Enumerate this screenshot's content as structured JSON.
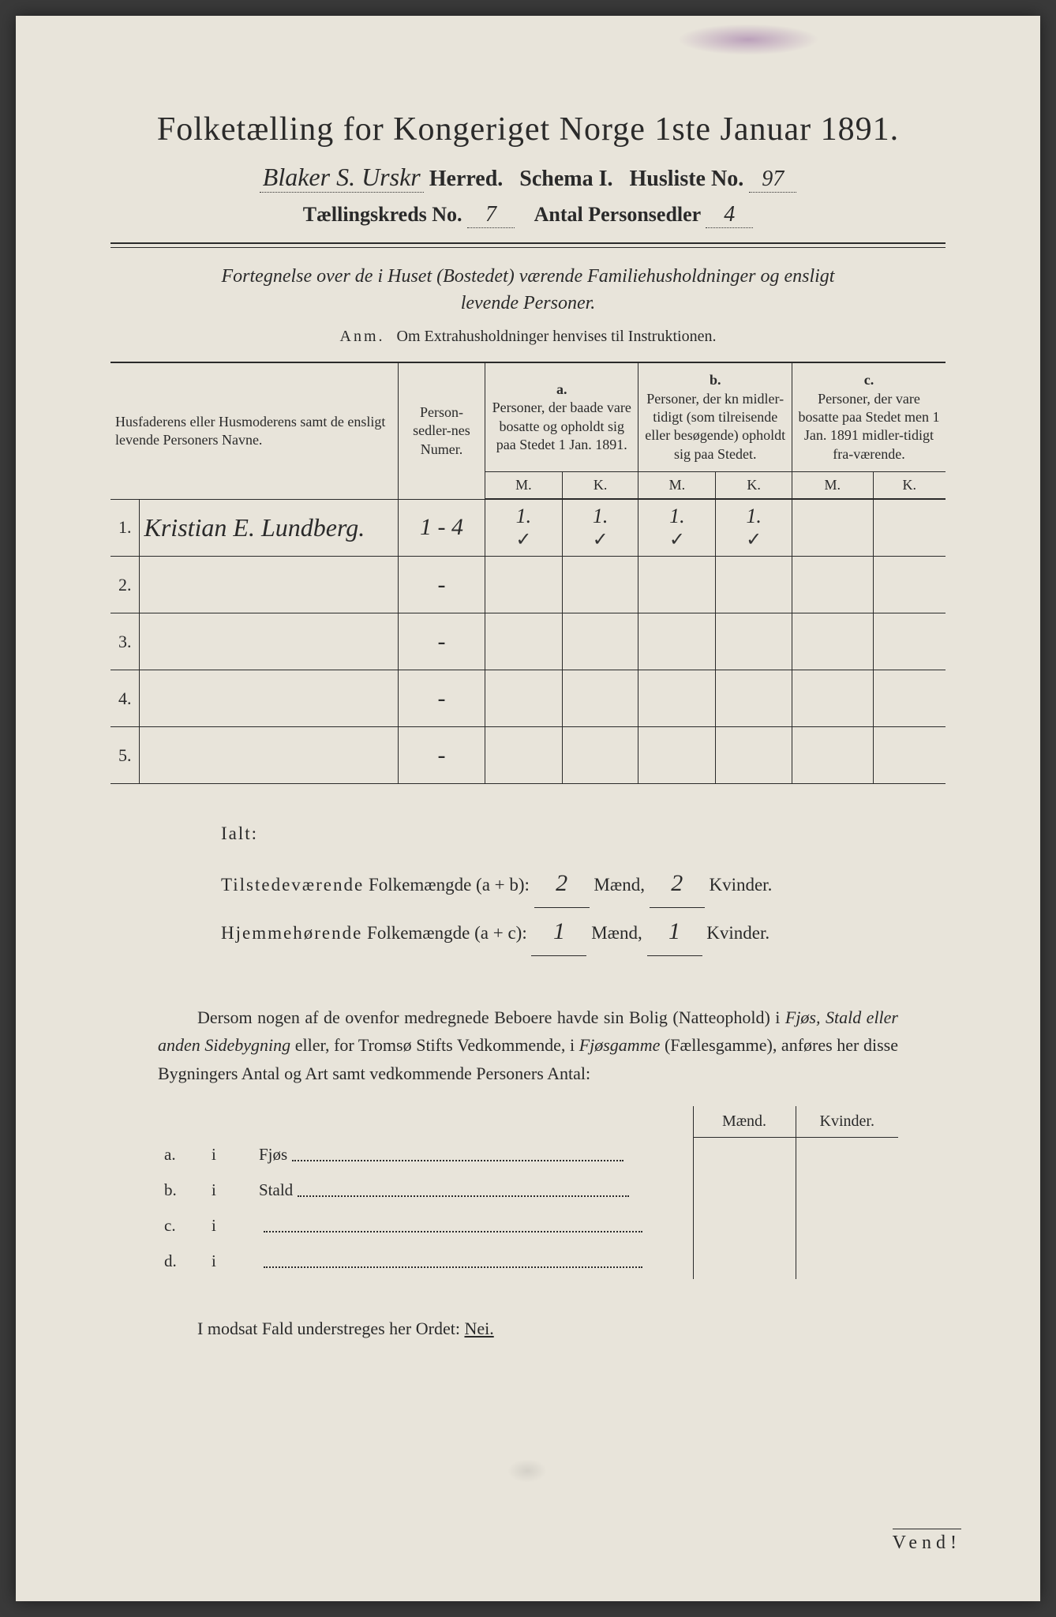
{
  "colors": {
    "paper": "#e8e4da",
    "ink": "#2a2a2a",
    "stain": "rgba(120,60,140,0.4)",
    "background": "#3a3a3a"
  },
  "header": {
    "title": "Folketælling for Kongeriget Norge 1ste Januar 1891.",
    "herred_hw": "Blaker S. Urskr",
    "herred_label": "Herred.",
    "schema_label": "Schema I.",
    "husliste_label": "Husliste No.",
    "husliste_no": "97",
    "kreds_label": "Tællingskreds No.",
    "kreds_no": "7",
    "antal_label": "Antal Personsedler",
    "antal_no": "4"
  },
  "subtitle": {
    "line1": "Fortegnelse over de i Huset (Bostedet) værende Familiehusholdninger og ensligt",
    "line2": "levende Personer.",
    "anm_label": "Anm.",
    "anm_text": "Om Extrahusholdninger henvises til Instruktionen."
  },
  "table": {
    "columns": {
      "name": "Husfaderens eller Husmoderens samt de ensligt levende Personers Navne.",
      "num": "Person-sedler-nes Numer.",
      "a_label": "a.",
      "a_text": "Personer, der baade vare bosatte og opholdt sig paa Stedet 1 Jan. 1891.",
      "b_label": "b.",
      "b_text": "Personer, der kn midler-tidigt (som tilreisende eller besøgende) opholdt sig paa Stedet.",
      "c_label": "c.",
      "c_text": "Personer, der vare bosatte paa Stedet men 1 Jan. 1891 midler-tidigt fra-værende.",
      "m": "M.",
      "k": "K."
    },
    "rows": [
      {
        "n": "1.",
        "name": "Kristian E. Lundberg.",
        "num": "1 - 4",
        "a_m": "1.",
        "a_k": "1.",
        "b_m": "1.",
        "b_k": "1.",
        "c_m": "",
        "c_k": "",
        "check_am": "✓",
        "check_ak": "✓",
        "check_bm": "✓",
        "check_bk": "✓"
      },
      {
        "n": "2.",
        "name": "",
        "num": "-",
        "a_m": "",
        "a_k": "",
        "b_m": "",
        "b_k": "",
        "c_m": "",
        "c_k": ""
      },
      {
        "n": "3.",
        "name": "",
        "num": "-",
        "a_m": "",
        "a_k": "",
        "b_m": "",
        "b_k": "",
        "c_m": "",
        "c_k": ""
      },
      {
        "n": "4.",
        "name": "",
        "num": "-",
        "a_m": "",
        "a_k": "",
        "b_m": "",
        "b_k": "",
        "c_m": "",
        "c_k": ""
      },
      {
        "n": "5.",
        "name": "",
        "num": "-",
        "a_m": "",
        "a_k": "",
        "b_m": "",
        "b_k": "",
        "c_m": "",
        "c_k": ""
      }
    ]
  },
  "ialt": {
    "label": "Ialt:",
    "line1_a": "Tilstedeværende",
    "line1_b": "Folkemængde (a + b):",
    "line1_m": "2",
    "line1_k": "2",
    "line2_a": "Hjemmehørende",
    "line2_b": "Folkemængde (a + c):",
    "line2_m": "1",
    "line2_k": "1",
    "maend": "Mænd,",
    "kvinder": "Kvinder."
  },
  "dersom": {
    "text_parts": [
      "Dersom nogen af de ovenfor medregnede Beboere havde sin Bolig (Natteophold) i ",
      "Fjøs, Stald eller anden Sidebygning",
      " eller, for Tromsø Stifts Vedkommende, i ",
      "Fjøsgamme",
      " (Fællesgamme), anføres her disse Bygningers Antal og Art samt vedkommende Personers Antal:"
    ]
  },
  "buildings": {
    "maend": "Mænd.",
    "kvinder": "Kvinder.",
    "rows": [
      {
        "lbl": "a.",
        "i": "i",
        "txt": "Fjøs"
      },
      {
        "lbl": "b.",
        "i": "i",
        "txt": "Stald"
      },
      {
        "lbl": "c.",
        "i": "i",
        "txt": ""
      },
      {
        "lbl": "d.",
        "i": "i",
        "txt": ""
      }
    ]
  },
  "modsat": "I modsat Fald understreges her Ordet:",
  "nei": "Nei.",
  "vend": "Vend!"
}
